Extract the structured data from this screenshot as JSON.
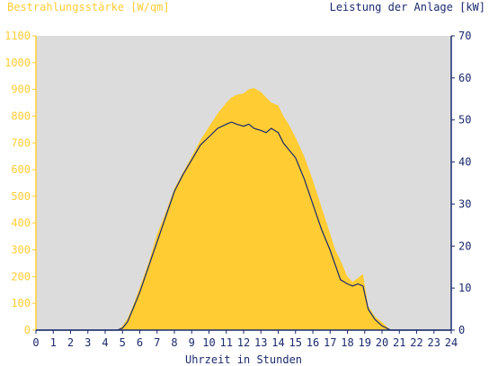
{
  "chart_data": {
    "type": "area",
    "left_axis_title": "Bestrahlungsstärke [W/qm]",
    "right_axis_title": "Leistung der Anlage [kW]",
    "xlabel": "Uhrzeit in Stunden",
    "x_ticks": [
      "0",
      "1",
      "2",
      "3",
      "4",
      "5",
      "6",
      "7",
      "8",
      "9",
      "10",
      "11",
      "12",
      "13",
      "14",
      "15",
      "16",
      "17",
      "18",
      "19",
      "20",
      "21",
      "22",
      "23",
      "24"
    ],
    "xlim": [
      0,
      24
    ],
    "ylim_left": [
      0,
      1100
    ],
    "ylim_right": [
      0,
      70
    ],
    "y_left_ticks": [
      "0",
      "100",
      "200",
      "300",
      "400",
      "500",
      "600",
      "700",
      "800",
      "900",
      "1000",
      "1100"
    ],
    "y_right_ticks": [
      "0",
      "10",
      "20",
      "30",
      "40",
      "50",
      "60",
      "70"
    ],
    "grid": false,
    "series": [
      {
        "axis": "left",
        "style": "area",
        "color": "#ffcc33",
        "x": [
          0,
          4.7,
          5.0,
          5.3,
          5.6,
          6.0,
          6.5,
          7.0,
          7.5,
          8.0,
          8.5,
          9.0,
          9.5,
          10.0,
          10.5,
          11.0,
          11.3,
          11.6,
          12.0,
          12.3,
          12.6,
          13.0,
          13.3,
          13.6,
          14.0,
          14.3,
          14.6,
          15.0,
          15.5,
          16.0,
          16.5,
          17.0,
          17.3,
          17.6,
          18.0,
          18.3,
          18.6,
          18.9,
          19.2,
          19.6,
          20.0,
          20.5,
          21.0,
          24
        ],
        "values": [
          0,
          0,
          15,
          45,
          90,
          160,
          250,
          360,
          440,
          530,
          590,
          650,
          710,
          760,
          810,
          850,
          870,
          880,
          885,
          900,
          905,
          890,
          870,
          850,
          840,
          800,
          770,
          720,
          650,
          560,
          460,
          360,
          300,
          260,
          200,
          180,
          195,
          210,
          90,
          50,
          30,
          0,
          0,
          0
        ]
      },
      {
        "axis": "right",
        "style": "line",
        "color": "#1a2a6e",
        "x": [
          0,
          4.7,
          5.0,
          5.3,
          5.6,
          6.0,
          6.5,
          7.0,
          7.5,
          8.0,
          8.5,
          9.0,
          9.5,
          10.0,
          10.5,
          11.0,
          11.3,
          11.6,
          12.0,
          12.3,
          12.6,
          13.0,
          13.3,
          13.6,
          14.0,
          14.3,
          14.6,
          15.0,
          15.5,
          16.0,
          16.5,
          17.0,
          17.3,
          17.6,
          18.0,
          18.3,
          18.6,
          18.9,
          19.2,
          19.6,
          20.0,
          20.5,
          21.0,
          24
        ],
        "values": [
          0,
          0,
          0.5,
          2.0,
          5.0,
          9.0,
          15.0,
          21.0,
          27.0,
          33.0,
          37.0,
          40.5,
          44.0,
          46.0,
          48.0,
          49.0,
          49.5,
          49.0,
          48.5,
          49.0,
          48.0,
          47.5,
          47.0,
          48.0,
          47.0,
          44.5,
          43.0,
          41.0,
          36.0,
          30.0,
          24.0,
          19.0,
          15.5,
          12.0,
          11.0,
          10.5,
          11.0,
          10.5,
          5.0,
          2.5,
          1.0,
          0,
          0,
          0
        ]
      }
    ]
  },
  "colors": {
    "left_axis": "#ffcc33",
    "right_axis": "#1a2a6e",
    "plot_background": "#dcdcdc",
    "axis_title_left": "#ffcc33",
    "axis_title_right": "#1a2a6e"
  }
}
